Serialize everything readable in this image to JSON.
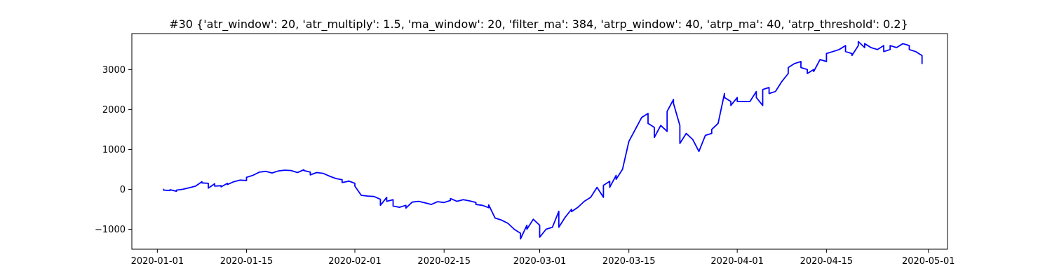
{
  "chart_data": {
    "type": "line",
    "title": "#30 {'atr_window': 20, 'atr_multiply': 1.5, 'ma_window': 20, 'filter_ma': 384, 'atrp_window': 40, 'atrp_ma': 40, 'atrp_threshold': 0.2}",
    "xlabel": "",
    "ylabel": "",
    "x_axis": "date",
    "xlim": [
      "2019-12-28",
      "2020-05-04"
    ],
    "ylim": [
      -1500,
      3900
    ],
    "x_ticks": [
      "2020-01-01",
      "2020-01-15",
      "2020-02-01",
      "2020-02-15",
      "2020-03-01",
      "2020-03-15",
      "2020-04-01",
      "2020-04-15",
      "2020-05-01"
    ],
    "x_tick_labels": [
      "2020-01-01",
      "2020-01-15",
      "2020-02-01",
      "2020-02-15",
      "2020-03-01",
      "2020-03-15",
      "2020-04-01",
      "2020-04-15",
      "2020-05-01"
    ],
    "y_ticks": [
      -1000,
      0,
      1000,
      2000,
      3000
    ],
    "y_tick_labels": [
      "−1000",
      "0",
      "1000",
      "2000",
      "3000"
    ],
    "grid": false,
    "series": [
      {
        "color": "#0000ff",
        "points": [
          [
            "2020-01-02",
            0
          ],
          [
            "2020-01-02",
            -20
          ],
          [
            "2020-01-03",
            -30
          ],
          [
            "2020-01-03",
            -10
          ],
          [
            "2020-01-04",
            -50
          ],
          [
            "2020-01-04",
            -20
          ],
          [
            "2020-01-05",
            0
          ],
          [
            "2020-01-06",
            40
          ],
          [
            "2020-01-07",
            80
          ],
          [
            "2020-01-08",
            190
          ],
          [
            "2020-01-08",
            160
          ],
          [
            "2020-01-09",
            150
          ],
          [
            "2020-01-09",
            30
          ],
          [
            "2020-01-10",
            140
          ],
          [
            "2020-01-10",
            80
          ],
          [
            "2020-01-11",
            90
          ],
          [
            "2020-01-11",
            60
          ],
          [
            "2020-01-12",
            150
          ],
          [
            "2020-01-12",
            120
          ],
          [
            "2020-01-13",
            190
          ],
          [
            "2020-01-14",
            230
          ],
          [
            "2020-01-15",
            220
          ],
          [
            "2020-01-15",
            300
          ],
          [
            "2020-01-16",
            350
          ],
          [
            "2020-01-17",
            430
          ],
          [
            "2020-01-18",
            450
          ],
          [
            "2020-01-19",
            410
          ],
          [
            "2020-01-20",
            460
          ],
          [
            "2020-01-21",
            480
          ],
          [
            "2020-01-22",
            470
          ],
          [
            "2020-01-23",
            420
          ],
          [
            "2020-01-24",
            490
          ],
          [
            "2020-01-24",
            470
          ],
          [
            "2020-01-25",
            430
          ],
          [
            "2020-01-25",
            360
          ],
          [
            "2020-01-26",
            420
          ],
          [
            "2020-01-27",
            400
          ],
          [
            "2020-01-28",
            330
          ],
          [
            "2020-01-29",
            270
          ],
          [
            "2020-01-30",
            240
          ],
          [
            "2020-01-30",
            170
          ],
          [
            "2020-01-31",
            200
          ],
          [
            "2020-01-31",
            210
          ],
          [
            "2020-02-01",
            150
          ],
          [
            "2020-02-01",
            80
          ],
          [
            "2020-02-02",
            -150
          ],
          [
            "2020-02-03",
            -170
          ],
          [
            "2020-02-04",
            -180
          ],
          [
            "2020-02-05",
            -250
          ],
          [
            "2020-02-05",
            -400
          ],
          [
            "2020-02-06",
            -200
          ],
          [
            "2020-02-06",
            -300
          ],
          [
            "2020-02-07",
            -260
          ],
          [
            "2020-02-07",
            -420
          ],
          [
            "2020-02-08",
            -450
          ],
          [
            "2020-02-09",
            -400
          ],
          [
            "2020-02-09",
            -470
          ],
          [
            "2020-02-10",
            -320
          ],
          [
            "2020-02-11",
            -300
          ],
          [
            "2020-02-12",
            -340
          ],
          [
            "2020-02-13",
            -380
          ],
          [
            "2020-02-14",
            -310
          ],
          [
            "2020-02-15",
            -330
          ],
          [
            "2020-02-16",
            -280
          ],
          [
            "2020-02-16",
            -230
          ],
          [
            "2020-02-17",
            -300
          ],
          [
            "2020-02-18",
            -260
          ],
          [
            "2020-02-19",
            -290
          ],
          [
            "2020-02-20",
            -330
          ],
          [
            "2020-02-20",
            -380
          ],
          [
            "2020-02-21",
            -400
          ],
          [
            "2020-02-22",
            -460
          ],
          [
            "2020-02-22",
            -390
          ],
          [
            "2020-02-23",
            -720
          ],
          [
            "2020-02-24",
            -770
          ],
          [
            "2020-02-25",
            -850
          ],
          [
            "2020-02-26",
            -1000
          ],
          [
            "2020-02-27",
            -1100
          ],
          [
            "2020-02-27",
            -1240
          ],
          [
            "2020-02-28",
            -900
          ],
          [
            "2020-02-28",
            -1000
          ],
          [
            "2020-02-29",
            -750
          ],
          [
            "2020-03-01",
            -900
          ],
          [
            "2020-03-01",
            -1200
          ],
          [
            "2020-03-02",
            -1000
          ],
          [
            "2020-03-03",
            -950
          ],
          [
            "2020-03-04",
            -550
          ],
          [
            "2020-03-04",
            -950
          ],
          [
            "2020-03-05",
            -700
          ],
          [
            "2020-03-06",
            -500
          ],
          [
            "2020-03-06",
            -560
          ],
          [
            "2020-03-07",
            -450
          ],
          [
            "2020-03-08",
            -300
          ],
          [
            "2020-03-09",
            -200
          ],
          [
            "2020-03-10",
            50
          ],
          [
            "2020-03-11",
            -200
          ],
          [
            "2020-03-11",
            100
          ],
          [
            "2020-03-12",
            200
          ],
          [
            "2020-03-12",
            50
          ],
          [
            "2020-03-13",
            350
          ],
          [
            "2020-03-13",
            250
          ],
          [
            "2020-03-14",
            500
          ],
          [
            "2020-03-15",
            1200
          ],
          [
            "2020-03-16",
            1500
          ],
          [
            "2020-03-17",
            1800
          ],
          [
            "2020-03-18",
            1900
          ],
          [
            "2020-03-18",
            1650
          ],
          [
            "2020-03-19",
            1550
          ],
          [
            "2020-03-19",
            1300
          ],
          [
            "2020-03-20",
            1600
          ],
          [
            "2020-03-21",
            1450
          ],
          [
            "2020-03-21",
            1950
          ],
          [
            "2020-03-22",
            2250
          ],
          [
            "2020-03-22",
            2150
          ],
          [
            "2020-03-23",
            1600
          ],
          [
            "2020-03-23",
            1150
          ],
          [
            "2020-03-24",
            1400
          ],
          [
            "2020-03-25",
            1250
          ],
          [
            "2020-03-26",
            950
          ],
          [
            "2020-03-27",
            1350
          ],
          [
            "2020-03-28",
            1400
          ],
          [
            "2020-03-28",
            1500
          ],
          [
            "2020-03-29",
            1650
          ],
          [
            "2020-03-30",
            2400
          ],
          [
            "2020-03-30",
            2300
          ],
          [
            "2020-03-31",
            2200
          ],
          [
            "2020-03-31",
            2100
          ],
          [
            "2020-04-01",
            2300
          ],
          [
            "2020-04-01",
            2200
          ],
          [
            "2020-04-02",
            2200
          ],
          [
            "2020-04-03",
            2200
          ],
          [
            "2020-04-04",
            2450
          ],
          [
            "2020-04-04",
            2300
          ],
          [
            "2020-04-05",
            2100
          ],
          [
            "2020-04-05",
            2500
          ],
          [
            "2020-04-06",
            2550
          ],
          [
            "2020-04-06",
            2400
          ],
          [
            "2020-04-07",
            2450
          ],
          [
            "2020-04-08",
            2700
          ],
          [
            "2020-04-09",
            2900
          ],
          [
            "2020-04-09",
            3050
          ],
          [
            "2020-04-10",
            3150
          ],
          [
            "2020-04-11",
            3200
          ],
          [
            "2020-04-11",
            3050
          ],
          [
            "2020-04-12",
            3000
          ],
          [
            "2020-04-12",
            2900
          ],
          [
            "2020-04-13",
            3000
          ],
          [
            "2020-04-13",
            2950
          ],
          [
            "2020-04-14",
            3250
          ],
          [
            "2020-04-15",
            3200
          ],
          [
            "2020-04-15",
            3400
          ],
          [
            "2020-04-16",
            3450
          ],
          [
            "2020-04-17",
            3500
          ],
          [
            "2020-04-18",
            3600
          ],
          [
            "2020-04-18",
            3450
          ],
          [
            "2020-04-19",
            3400
          ],
          [
            "2020-04-19",
            3350
          ],
          [
            "2020-04-20",
            3600
          ],
          [
            "2020-04-20",
            3700
          ],
          [
            "2020-04-21",
            3550
          ],
          [
            "2020-04-21",
            3650
          ],
          [
            "2020-04-22",
            3550
          ],
          [
            "2020-04-23",
            3500
          ],
          [
            "2020-04-24",
            3600
          ],
          [
            "2020-04-24",
            3450
          ],
          [
            "2020-04-25",
            3500
          ],
          [
            "2020-04-25",
            3600
          ],
          [
            "2020-04-26",
            3550
          ],
          [
            "2020-04-27",
            3650
          ],
          [
            "2020-04-28",
            3600
          ],
          [
            "2020-04-28",
            3500
          ],
          [
            "2020-04-29",
            3450
          ],
          [
            "2020-04-30",
            3350
          ],
          [
            "2020-04-30",
            3300
          ],
          [
            "2020-04-30",
            3150
          ]
        ]
      }
    ]
  }
}
